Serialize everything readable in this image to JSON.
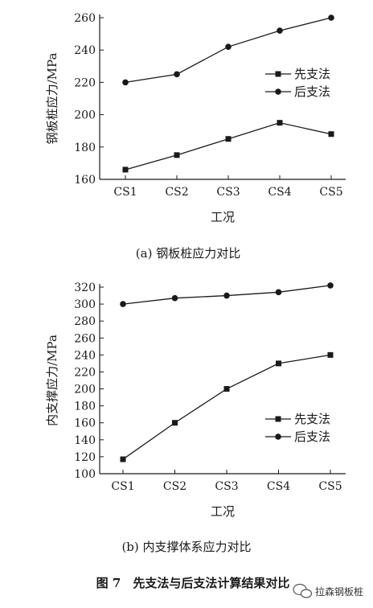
{
  "figure_title": "图 7　先支法与后支法计算结果对比",
  "watermark": "拉森钢板桩",
  "colors": {
    "line": "#1a1a1a",
    "background": "#ffffff"
  },
  "chart_data": [
    {
      "type": "line",
      "caption": "(a) 钢板桩应力对比",
      "xlabel": "工况",
      "ylabel": "钢板桩应力/MPa",
      "categories": [
        "CS1",
        "CS2",
        "CS3",
        "CS4",
        "CS5"
      ],
      "ylim": [
        160,
        260
      ],
      "yticks": [
        160,
        180,
        200,
        220,
        240,
        260
      ],
      "grid": false,
      "legend_position": "right",
      "series": [
        {
          "name": "先支法",
          "marker": "square",
          "values": [
            166,
            175,
            185,
            195,
            188
          ]
        },
        {
          "name": "后支法",
          "marker": "circle",
          "values": [
            220,
            225,
            242,
            252,
            260
          ]
        }
      ]
    },
    {
      "type": "line",
      "caption": "(b) 内支撑体系应力对比",
      "xlabel": "工况",
      "ylabel": "内支撑应力/MPa",
      "categories": [
        "CS1",
        "CS2",
        "CS3",
        "CS4",
        "CS5"
      ],
      "ylim": [
        100,
        320
      ],
      "yticks": [
        100,
        120,
        140,
        160,
        180,
        200,
        220,
        240,
        260,
        280,
        300,
        320
      ],
      "grid": false,
      "legend_position": "right",
      "series": [
        {
          "name": "先支法",
          "marker": "square",
          "values": [
            117,
            160,
            200,
            230,
            240
          ]
        },
        {
          "name": "后支法",
          "marker": "circle",
          "values": [
            300,
            307,
            310,
            314,
            322
          ]
        }
      ]
    }
  ]
}
